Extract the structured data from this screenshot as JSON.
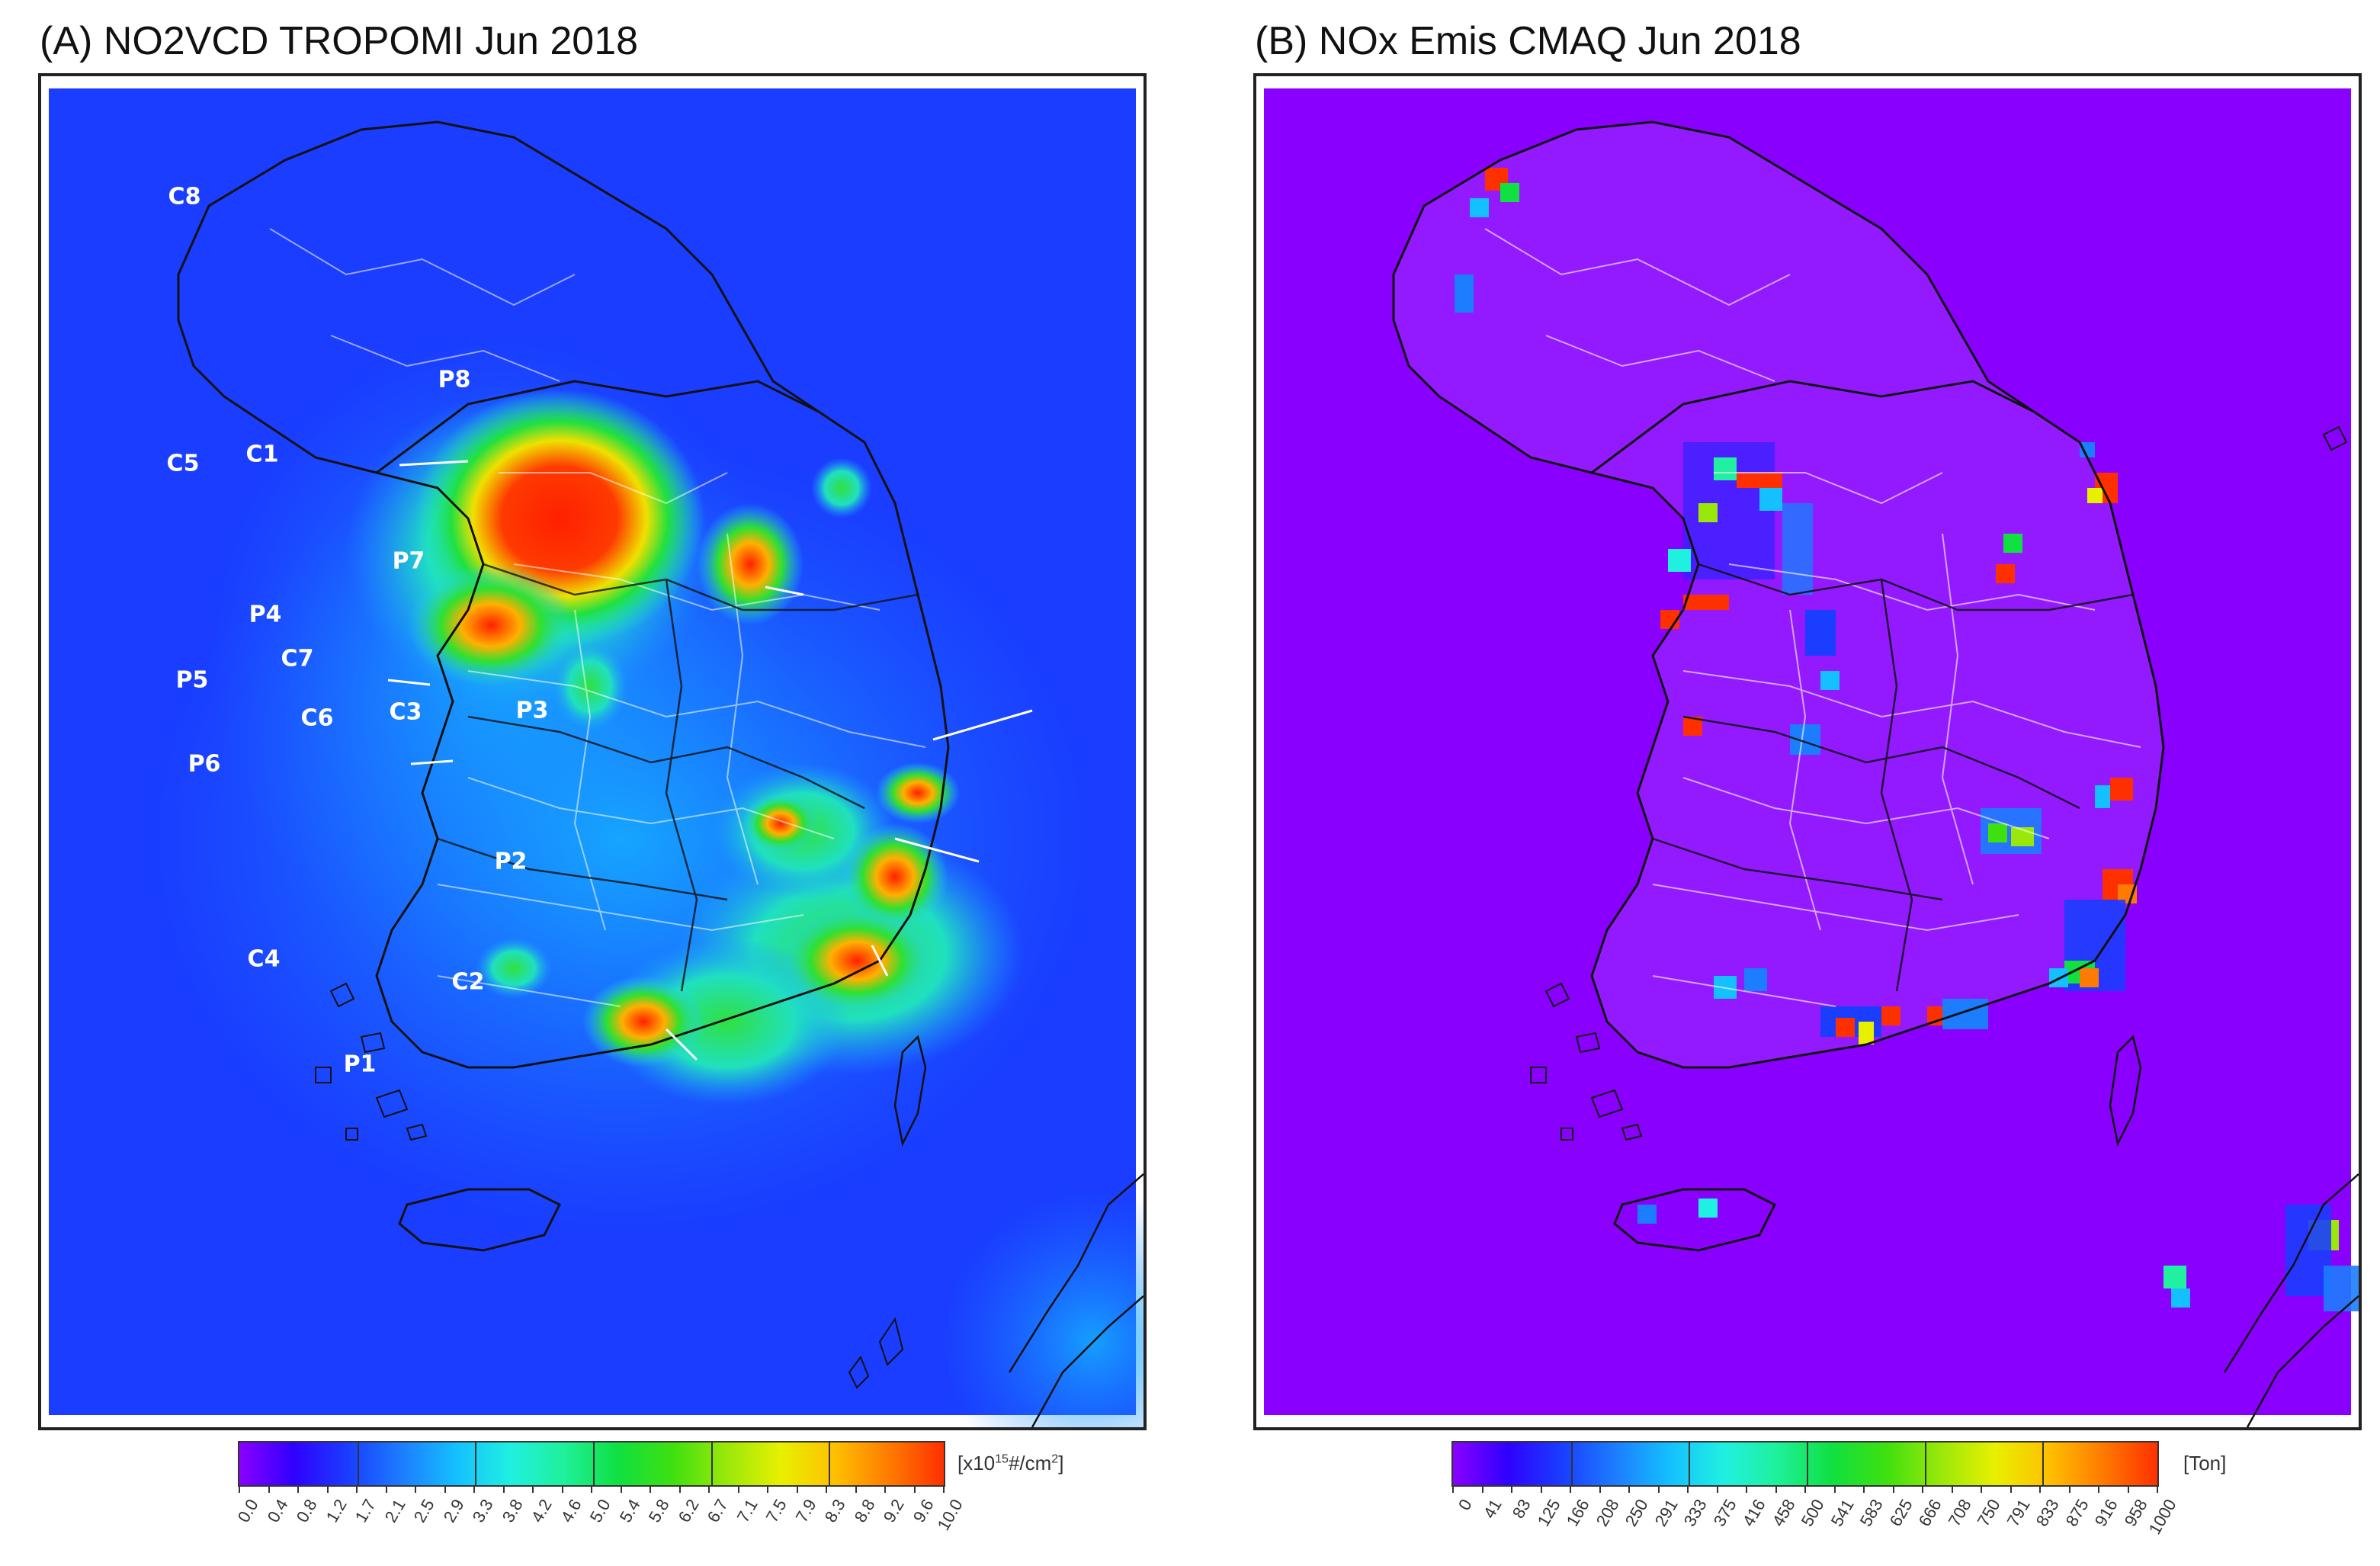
{
  "panel_a": {
    "title": "(A) NO2VCD TROPOMI Jun 2018",
    "labels": [
      "C8",
      "C5",
      "C1",
      "P8",
      "P7",
      "P4",
      "C7",
      "P5",
      "C6",
      "C3",
      "P3",
      "P6",
      "P2",
      "C4",
      "C2",
      "P1"
    ],
    "colorbar": {
      "unit_base": "[x10",
      "unit_sup": "15",
      "unit_rest": "#/cm",
      "unit_sup2": "2",
      "unit_end": "]",
      "ticks": [
        "0.0",
        "0.4",
        "0.8",
        "1.2",
        "1.7",
        "2.1",
        "2.5",
        "2.9",
        "3.3",
        "3.8",
        "4.2",
        "4.6",
        "5.0",
        "5.4",
        "5.8",
        "6.2",
        "6.7",
        "7.1",
        "7.5",
        "7.9",
        "8.3",
        "8.8",
        "9.2",
        "9.6",
        "10.0"
      ],
      "colors": [
        "#8a00ff",
        "#3000ff",
        "#1a3dff",
        "#1d7dff",
        "#14c0ff",
        "#20f0e0",
        "#1ff09a",
        "#10e040",
        "#3ee010",
        "#9ae80a",
        "#e8f000",
        "#ffc000",
        "#ff7a00",
        "#ff3000"
      ]
    }
  },
  "panel_b": {
    "title": "(B) NOx Emis CMAQ Jun 2018",
    "colorbar": {
      "unit": "[Ton]",
      "ticks": [
        "0",
        "41",
        "83",
        "125",
        "166",
        "208",
        "250",
        "291",
        "333",
        "375",
        "416",
        "458",
        "500",
        "541",
        "583",
        "625",
        "666",
        "708",
        "750",
        "791",
        "833",
        "875",
        "916",
        "958",
        "1000"
      ],
      "colors": [
        "#8a00ff",
        "#3000ff",
        "#1a3dff",
        "#1d7dff",
        "#14c0ff",
        "#20f0e0",
        "#1ff09a",
        "#10e040",
        "#3ee010",
        "#9ae80a",
        "#e8f000",
        "#ffc000",
        "#ff7a00",
        "#ff3000"
      ]
    }
  }
}
